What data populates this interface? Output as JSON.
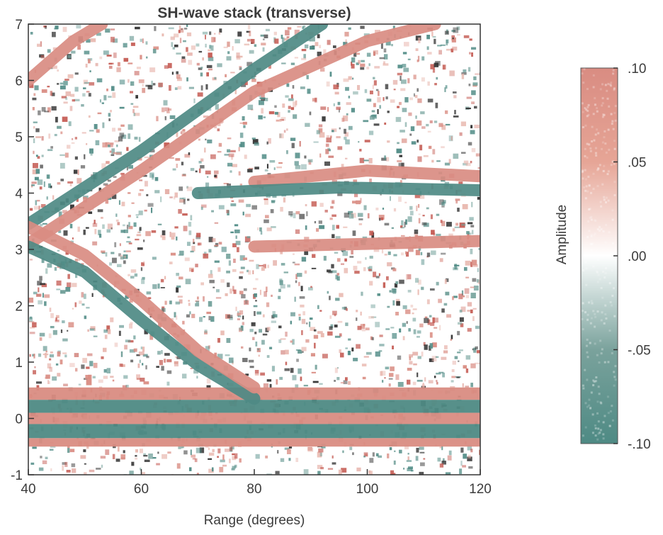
{
  "chart_data": {
    "type": "heatmap",
    "title": "SH-wave stack (transverse)",
    "xlabel": "Range (degrees)",
    "ylabel": "",
    "xlim": [
      40,
      120
    ],
    "ylim": [
      -1,
      7
    ],
    "x_ticks": [
      "40",
      "60",
      "80",
      "100",
      "120"
    ],
    "y_ticks": [
      "-1",
      "0",
      "1",
      "2",
      "3",
      "4",
      "5",
      "6",
      "7"
    ],
    "colorbar": {
      "label": "Amplitude",
      "range": [
        -0.1,
        0.1
      ],
      "ticks": [
        ".10",
        ".05",
        ".00",
        "-.05",
        "-.10"
      ],
      "colors": {
        "positive": "#d98c82",
        "zero": "#ffffff",
        "negative": "#4e8a84"
      }
    },
    "phases": [
      {
        "kind": "positive",
        "points": [
          [
            40,
            3.1
          ],
          [
            60,
            4.4
          ],
          [
            80,
            5.8
          ],
          [
            100,
            6.7
          ],
          [
            112,
            7.0
          ]
        ]
      },
      {
        "kind": "negative",
        "points": [
          [
            40,
            3.45
          ],
          [
            60,
            4.75
          ],
          [
            80,
            6.2
          ],
          [
            92,
            7.0
          ]
        ]
      },
      {
        "kind": "negative",
        "points": [
          [
            40,
            3.05
          ],
          [
            50,
            2.6
          ],
          [
            60,
            1.75
          ],
          [
            70,
            0.95
          ],
          [
            80,
            0.35
          ]
        ]
      },
      {
        "kind": "positive",
        "points": [
          [
            40,
            3.4
          ],
          [
            50,
            2.9
          ],
          [
            60,
            2.1
          ],
          [
            70,
            1.2
          ],
          [
            80,
            0.55
          ]
        ]
      },
      {
        "kind": "positive",
        "points": [
          [
            40,
            6.0
          ],
          [
            48,
            6.7
          ],
          [
            53,
            7.0
          ]
        ]
      },
      {
        "kind": "positive",
        "points": [
          [
            80,
            4.2
          ],
          [
            100,
            4.4
          ],
          [
            120,
            4.3
          ]
        ]
      },
      {
        "kind": "positive",
        "points": [
          [
            80,
            3.05
          ],
          [
            100,
            3.1
          ],
          [
            120,
            3.15
          ]
        ]
      },
      {
        "kind": "negative",
        "points": [
          [
            70,
            4.0
          ],
          [
            95,
            4.1
          ],
          [
            120,
            4.05
          ]
        ]
      }
    ],
    "flat_bands": [
      {
        "kind": "positive",
        "y": [
          0.33,
          0.55
        ]
      },
      {
        "kind": "negative",
        "y": [
          0.1,
          0.33
        ]
      },
      {
        "kind": "positive",
        "y": [
          -0.1,
          0.1
        ]
      },
      {
        "kind": "negative",
        "y": [
          -0.35,
          -0.1
        ]
      },
      {
        "kind": "positive",
        "y": [
          -0.5,
          -0.35
        ]
      }
    ]
  }
}
